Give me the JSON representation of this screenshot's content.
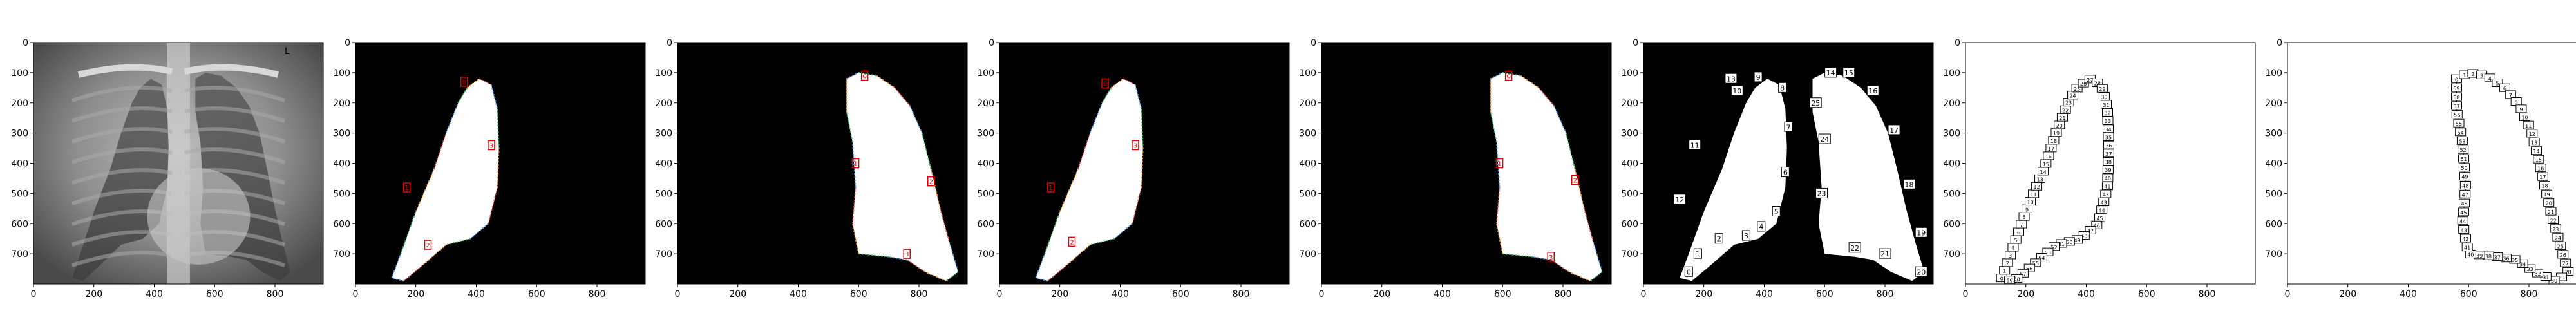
{
  "figure": {
    "panel_count": 8,
    "axes": {
      "x_ticks": [
        0,
        200,
        400,
        600,
        800
      ],
      "y_ticks": [
        0,
        100,
        200,
        300,
        400,
        500,
        600,
        700
      ],
      "x_range": [
        0,
        960
      ],
      "y_range": [
        0,
        800
      ]
    }
  },
  "panels": [
    {
      "type": "xray",
      "corner_letter": "L"
    },
    {
      "type": "mask-left-lung",
      "red_marks": [
        {
          "label": "0",
          "x": 360,
          "y": 130
        },
        {
          "label": "1",
          "x": 170,
          "y": 480
        },
        {
          "label": "2",
          "x": 240,
          "y": 670
        },
        {
          "label": "3",
          "x": 450,
          "y": 340
        }
      ]
    },
    {
      "type": "mask-right-lung",
      "red_marks": [
        {
          "label": "0",
          "x": 620,
          "y": 110
        },
        {
          "label": "1",
          "x": 590,
          "y": 400
        },
        {
          "label": "2",
          "x": 840,
          "y": 460
        },
        {
          "label": "3",
          "x": 760,
          "y": 700
        }
      ]
    },
    {
      "type": "mask-left-lung",
      "red_marks": [
        {
          "label": "0",
          "x": 350,
          "y": 135
        },
        {
          "label": "1",
          "x": 170,
          "y": 480
        },
        {
          "label": "2",
          "x": 240,
          "y": 660
        },
        {
          "label": "3",
          "x": 450,
          "y": 340
        }
      ]
    },
    {
      "type": "mask-right-lung",
      "red_marks": [
        {
          "label": "0",
          "x": 620,
          "y": 110
        },
        {
          "label": "1",
          "x": 590,
          "y": 400
        },
        {
          "label": "2",
          "x": 840,
          "y": 455
        },
        {
          "label": "3",
          "x": 760,
          "y": 710
        }
      ]
    },
    {
      "type": "both-lungs-numbered",
      "labels_left": [
        {
          "label": "0",
          "x": 150,
          "y": 760
        },
        {
          "label": "1",
          "x": 180,
          "y": 700
        },
        {
          "label": "2",
          "x": 250,
          "y": 650
        },
        {
          "label": "3",
          "x": 340,
          "y": 640
        },
        {
          "label": "4",
          "x": 390,
          "y": 610
        },
        {
          "label": "5",
          "x": 440,
          "y": 560
        },
        {
          "label": "6",
          "x": 470,
          "y": 430
        },
        {
          "label": "7",
          "x": 480,
          "y": 280
        },
        {
          "label": "8",
          "x": 460,
          "y": 150
        },
        {
          "label": "9",
          "x": 380,
          "y": 115
        },
        {
          "label": "10",
          "x": 310,
          "y": 160
        },
        {
          "label": "11",
          "x": 170,
          "y": 340
        },
        {
          "label": "12",
          "x": 120,
          "y": 520
        },
        {
          "label": "13",
          "x": 290,
          "y": 120
        }
      ],
      "labels_right": [
        {
          "label": "14",
          "x": 620,
          "y": 100
        },
        {
          "label": "15",
          "x": 680,
          "y": 100
        },
        {
          "label": "16",
          "x": 760,
          "y": 160
        },
        {
          "label": "17",
          "x": 830,
          "y": 290
        },
        {
          "label": "18",
          "x": 880,
          "y": 470
        },
        {
          "label": "19",
          "x": 920,
          "y": 630
        },
        {
          "label": "20",
          "x": 920,
          "y": 760
        },
        {
          "label": "21",
          "x": 800,
          "y": 700
        },
        {
          "label": "22",
          "x": 700,
          "y": 680
        },
        {
          "label": "23",
          "x": 590,
          "y": 500
        },
        {
          "label": "24",
          "x": 600,
          "y": 320
        },
        {
          "label": "25",
          "x": 570,
          "y": 200
        }
      ]
    },
    {
      "type": "left-lung-outline-numbered",
      "ring_count": 60
    },
    {
      "type": "right-lung-outline-numbered",
      "ring_count": 60
    }
  ]
}
